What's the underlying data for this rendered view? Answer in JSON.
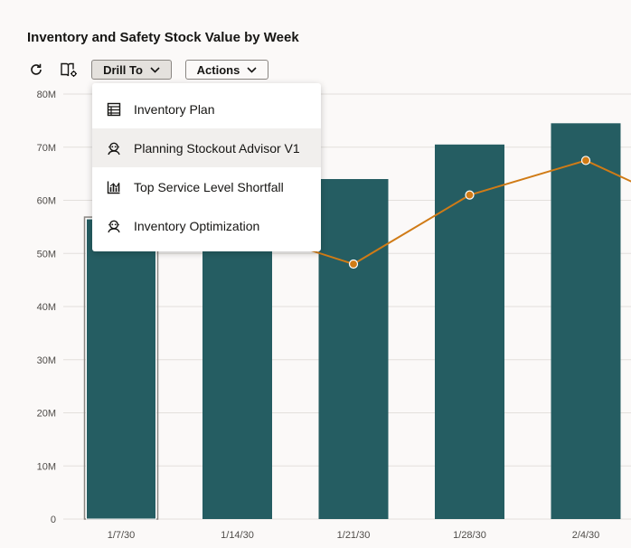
{
  "title": "Inventory and Safety Stock Value by Week",
  "toolbar": {
    "refresh_icon": "refresh-icon",
    "view_icon": "book-settings-icon",
    "drill_label": "Drill To",
    "actions_label": "Actions"
  },
  "menu": {
    "items": [
      {
        "label": "Inventory Plan",
        "icon": "table-icon"
      },
      {
        "label": "Planning Stockout Advisor V1",
        "icon": "advisor-icon"
      },
      {
        "label": "Top Service Level Shortfall",
        "icon": "bar-chart-icon"
      },
      {
        "label": "Inventory Optimization",
        "icon": "advisor-icon"
      }
    ]
  },
  "colors": {
    "bar": "#255d62",
    "line": "#d07b16",
    "grid": "#e3e0dc",
    "highlight": "#f1efed"
  },
  "chart_data": {
    "type": "bar",
    "categories": [
      "1/7/30",
      "1/14/30",
      "1/21/30",
      "1/28/30",
      "2/4/30"
    ],
    "series": [
      {
        "values": [
          56.5,
          58,
          64,
          70.5,
          74.5
        ],
        "kind": "bar"
      },
      {
        "values": [
          null,
          null,
          48,
          61,
          67.5
        ],
        "kind": "line"
      }
    ],
    "line_continues_right": 62.5,
    "yticks": [
      "0",
      "10M",
      "20M",
      "30M",
      "40M",
      "50M",
      "60M",
      "70M",
      "80M"
    ],
    "ylim": [
      0,
      80
    ],
    "grid": true,
    "selected_category": "1/7/30"
  }
}
